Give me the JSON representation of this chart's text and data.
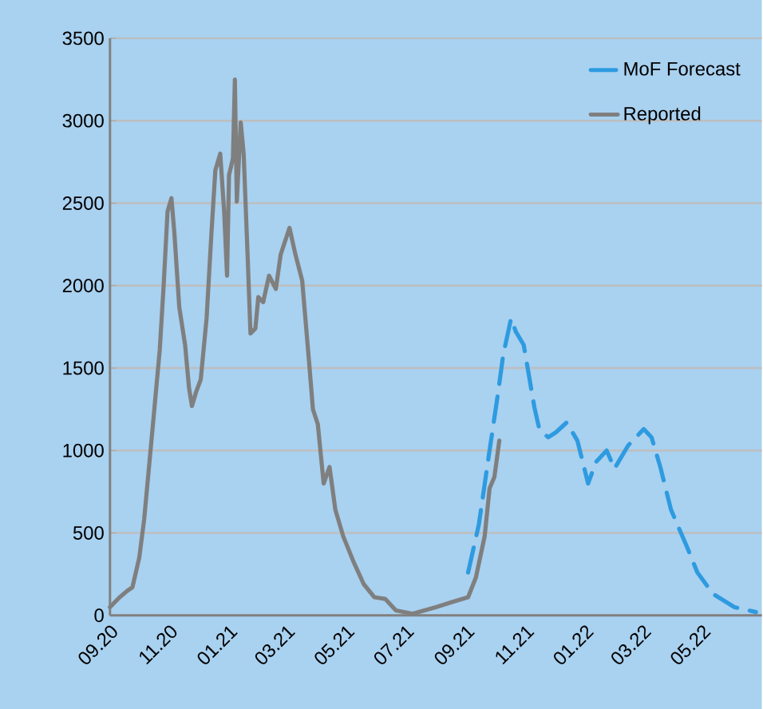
{
  "chart_data": {
    "type": "line",
    "series": [
      {
        "name": "MoF Forecast",
        "color": "#2e9be0",
        "line_style": "dashed",
        "x": [
          "2021-09-03",
          "2021-09-14",
          "2021-09-25",
          "2021-10-03",
          "2021-10-09",
          "2021-10-17",
          "2021-10-22",
          "2021-10-30",
          "2021-11-10",
          "2021-11-15",
          "2021-11-24",
          "2021-12-02",
          "2021-12-13",
          "2021-12-24",
          "2022-01-04",
          "2022-01-12",
          "2022-01-23",
          "2022-01-31",
          "2022-02-14",
          "2022-03-02",
          "2022-03-10",
          "2022-03-19",
          "2022-03-30",
          "2022-04-07",
          "2022-04-15",
          "2022-04-26",
          "2022-05-12",
          "2022-06-03",
          "2022-06-25"
        ],
        "values": [
          260,
          550,
          1000,
          1320,
          1580,
          1800,
          1720,
          1640,
          1260,
          1130,
          1080,
          1110,
          1170,
          1060,
          800,
          930,
          1000,
          890,
          1030,
          1130,
          1080,
          900,
          640,
          530,
          420,
          260,
          130,
          50,
          20
        ]
      },
      {
        "name": "Reported",
        "color": "#7f7f7f",
        "line_style": "solid",
        "x": [
          "2020-09-01",
          "2020-09-11",
          "2020-09-19",
          "2020-09-24",
          "2020-10-01",
          "2020-10-06",
          "2020-10-11",
          "2020-10-16",
          "2020-10-22",
          "2020-10-26",
          "2020-10-30",
          "2020-11-03",
          "2020-11-06",
          "2020-11-11",
          "2020-11-17",
          "2020-11-21",
          "2020-11-24",
          "2020-11-28",
          "2020-12-03",
          "2020-12-09",
          "2020-12-14",
          "2020-12-18",
          "2020-12-23",
          "2020-12-27",
          "2020-12-30",
          "2021-01-01",
          "2021-01-05",
          "2021-01-07",
          "2021-01-09",
          "2021-01-13",
          "2021-01-16",
          "2021-01-20",
          "2021-01-23",
          "2021-01-28",
          "2021-01-31",
          "2021-02-05",
          "2021-02-11",
          "2021-02-18",
          "2021-02-23",
          "2021-03-04",
          "2021-03-10",
          "2021-03-17",
          "2021-03-24",
          "2021-03-28",
          "2021-04-02",
          "2021-04-08",
          "2021-04-14",
          "2021-04-20",
          "2021-04-28",
          "2021-05-09",
          "2021-05-19",
          "2021-05-30",
          "2021-06-10",
          "2021-06-21",
          "2021-07-08",
          "2021-08-01",
          "2021-08-17",
          "2021-09-03",
          "2021-09-11",
          "2021-09-20",
          "2021-09-25",
          "2021-09-30",
          "2021-10-05"
        ],
        "values": [
          50,
          110,
          150,
          170,
          350,
          580,
          900,
          1220,
          1610,
          2000,
          2450,
          2530,
          2320,
          1870,
          1640,
          1380,
          1270,
          1350,
          1430,
          1800,
          2320,
          2700,
          2800,
          2450,
          2060,
          2670,
          2770,
          3250,
          2510,
          2990,
          2800,
          2190,
          1710,
          1740,
          1930,
          1900,
          2060,
          1980,
          2190,
          2350,
          2190,
          2030,
          1540,
          1250,
          1160,
          800,
          900,
          640,
          480,
          320,
          190,
          110,
          100,
          30,
          10,
          50,
          80,
          110,
          230,
          480,
          770,
          840,
          1060
        ]
      }
    ],
    "xlim": [
      "2020-09-01",
      "2022-07-01"
    ],
    "xticks": [
      {
        "value": "2020-09-01",
        "label": "09.20"
      },
      {
        "value": "2020-11-01",
        "label": "11.20"
      },
      {
        "value": "2021-01-01",
        "label": "01.21"
      },
      {
        "value": "2021-03-01",
        "label": "03.21"
      },
      {
        "value": "2021-05-01",
        "label": "05.21"
      },
      {
        "value": "2021-07-01",
        "label": "07.21"
      },
      {
        "value": "2021-09-01",
        "label": "09.21"
      },
      {
        "value": "2021-11-01",
        "label": "11.21"
      },
      {
        "value": "2022-01-01",
        "label": "01.22"
      },
      {
        "value": "2022-03-01",
        "label": "03.22"
      },
      {
        "value": "2022-05-01",
        "label": "05.22"
      }
    ],
    "ylim": [
      0,
      3500
    ],
    "yticks": [
      0,
      500,
      1000,
      1500,
      2000,
      2500,
      3000,
      3500
    ],
    "grid": "y",
    "legend": "top right",
    "marker": "none"
  }
}
